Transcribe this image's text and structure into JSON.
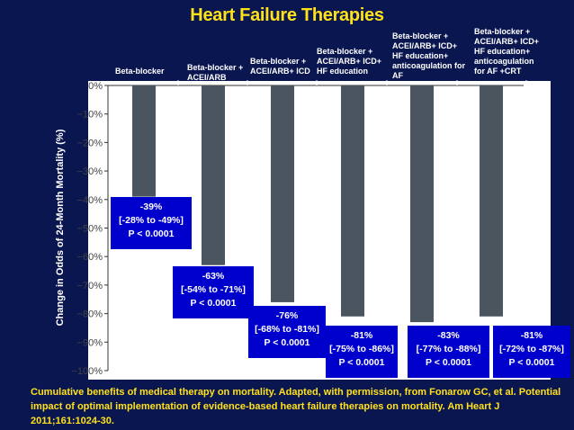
{
  "slide": {
    "title": "Heart Failure Therapies",
    "caption": "Cumulative benefits of medical therapy on mortality. Adapted, with permission, from Fonarow GC, et al. Potential impact of optimal implementation of evidence-based heart failure therapies on mortality. Am Heart J 2011;161:1024-30."
  },
  "colors": {
    "background": "#0a1650",
    "plot_area": "#ffffff",
    "bar": "#4a5560",
    "annotation_box": "#0000cc",
    "title_text": "#ffe11a",
    "caption_text": "#ffe11a"
  },
  "chart_data": {
    "type": "bar",
    "ylabel": "Change in Odds of 24-Month Mortality (%)",
    "ylim": [
      -100,
      0
    ],
    "yticks": [
      "0%",
      "−10%",
      "−20%",
      "−30%",
      "−40%",
      "−50%",
      "−60%",
      "−70%",
      "−80%",
      "−90%",
      "−100%"
    ],
    "grid": false,
    "categories": [
      [
        "Beta-blocker"
      ],
      [
        "Beta-blocker +",
        "ACEI/ARB"
      ],
      [
        "Beta-blocker +",
        "ACEI/ARB+ ICD"
      ],
      [
        "Beta-blocker +",
        "ACEI/ARB+ ICD+",
        "HF education"
      ],
      [
        "Beta-blocker +",
        "ACEI/ARB+ ICD+",
        "HF education+",
        "anticoagulation for",
        "AF"
      ],
      [
        "Beta-blocker +",
        "ACEI/ARB+ ICD+",
        "HF education+",
        "anticoagulation",
        "for AF +CRT"
      ]
    ],
    "values": [
      -39,
      -63,
      -76,
      -81,
      -83,
      -81
    ],
    "annotations": [
      [
        "-39%",
        "[-28% to -49%]",
        "P < 0.0001"
      ],
      [
        "-63%",
        "[-54% to -71%]",
        "P < 0.0001"
      ],
      [
        "-76%",
        "[-68% to -81%]",
        "P < 0.0001"
      ],
      [
        "-81%",
        "[-75% to -86%]",
        "P < 0.0001"
      ],
      [
        "-83%",
        "[-77% to -88%]",
        "P < 0.0001"
      ],
      [
        "-81%",
        "[-72% to -87%]",
        "P < 0.0001"
      ]
    ]
  }
}
